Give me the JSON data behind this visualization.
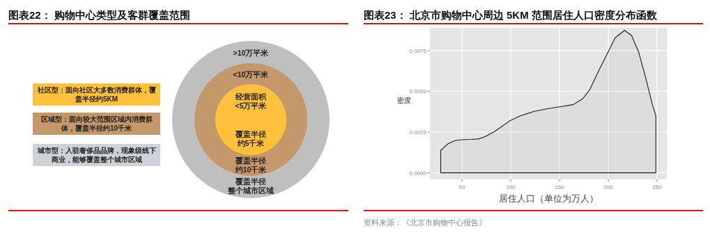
{
  "chart_data": [
    {
      "type": "other",
      "title": "图表22：  购物中心类型及客群覆盖范围",
      "annotations": [
        "社区型：面向社区大多数消费群体，覆盖半径约5KM",
        "区域型：面向较大范围区域内消费群体，覆盖半径约10千米",
        "城市型：入驻奢侈品品牌，现象级线下商业，能够覆盖整个城市区域",
        ">10万平米",
        "<10万平米",
        "经营面积",
        "<5万平米",
        "覆盖半径",
        "约5千米",
        "覆盖半径",
        "约10千米",
        "覆盖半径",
        "整个城市区域"
      ]
    },
    {
      "type": "area",
      "title": "图表23：  北京市购物中心周边 5KM 范围居住人口密度分布函数",
      "xlabel": "居住人口（单位为万人）",
      "ylabel": "密度",
      "x": [
        28.1,
        35.7,
        42.9,
        50,
        59.5,
        66.7,
        73.8,
        83.3,
        98.8,
        109.5,
        123.8,
        138.1,
        150,
        164.3,
        173.8,
        181,
        190.5,
        200,
        207.1,
        216.7,
        223.8,
        231,
        238.1,
        245.2,
        248.8
      ],
      "values": [
        0.00137,
        0.00179,
        0.00198,
        0.00203,
        0.00205,
        0.00208,
        0.00222,
        0.00253,
        0.00318,
        0.00349,
        0.00377,
        0.00394,
        0.00405,
        0.00419,
        0.00455,
        0.00511,
        0.00631,
        0.00744,
        0.00829,
        0.00874,
        0.00843,
        0.00744,
        0.00589,
        0.00419,
        0.00349
      ],
      "color": "#1a1a1a",
      "xlim": [
        17,
        260
      ],
      "ylim": [
        -0.0004,
        0.0089
      ],
      "xticks": [
        50,
        100,
        150,
        200,
        250
      ],
      "yticks": [
        {
          "value": 0,
          "label": "0.0000"
        },
        {
          "value": 0.0025,
          "label": "0.0025"
        },
        {
          "value": 0.005,
          "label": "0.0050"
        },
        {
          "value": 0.0075,
          "label": "0.0075"
        }
      ],
      "grid": true,
      "annotations": [
        "资料来源：《北京市购物中心报告》"
      ]
    }
  ]
}
